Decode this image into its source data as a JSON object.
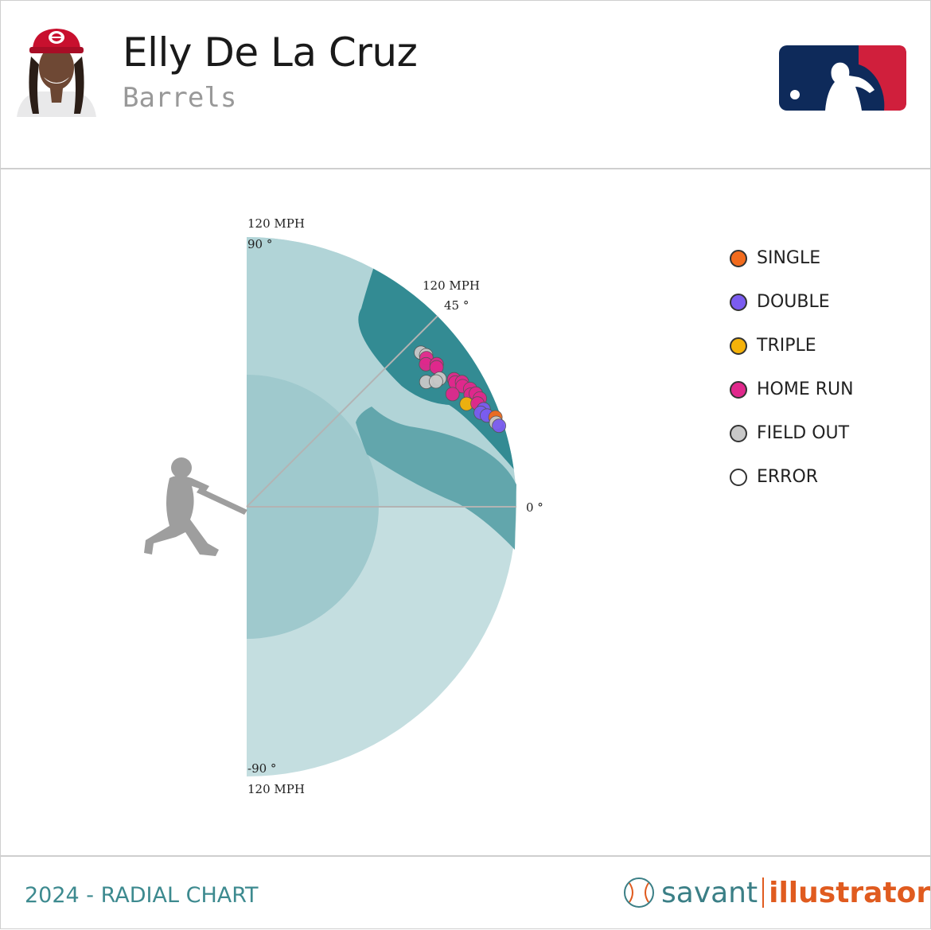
{
  "header": {
    "player_name": "Elly De La Cruz",
    "subtitle": "Barrels"
  },
  "footer": {
    "left_text": "2024 - RADIAL CHART",
    "brand_left": "savant",
    "brand_right": "illustrator"
  },
  "colors": {
    "single": "#f26b1d",
    "double": "#7b5cf0",
    "triple": "#f5b20a",
    "home_run": "#e0288c",
    "field_out": "#c8c8c8",
    "error": "#ffffff",
    "outer_zone": "#c4dee0",
    "upper_zone": "#b1d4d7",
    "inner_zone": "#9fc9cd",
    "sweet_zone": "#62a6ac",
    "barrel_zone": "#338b93"
  },
  "legend": [
    {
      "label": "SINGLE",
      "color_key": "single"
    },
    {
      "label": "DOUBLE",
      "color_key": "double"
    },
    {
      "label": "TRIPLE",
      "color_key": "triple"
    },
    {
      "label": "HOME RUN",
      "color_key": "home_run"
    },
    {
      "label": "FIELD OUT",
      "color_key": "field_out"
    },
    {
      "label": "ERROR",
      "color_key": "error"
    }
  ],
  "chart_data": {
    "type": "scatter",
    "coordinate_system": "polar",
    "x_quantity": "launch angle (degrees)",
    "y_quantity": "exit velocity (mph)",
    "angle_range": [
      -90,
      90
    ],
    "velocity_max": 120,
    "grid": true,
    "legend_position": "right",
    "axis_labels": [
      {
        "speed": "120 MPH",
        "angle": "90 °"
      },
      {
        "speed": "120 MPH",
        "angle": "45 °"
      },
      {
        "speed": "",
        "angle": "0 °"
      },
      {
        "speed": "120 MPH",
        "angle": "-90 °"
      }
    ],
    "points": [
      {
        "angle": 41.5,
        "speed": 103.5,
        "result": "field_out"
      },
      {
        "angle": 40.2,
        "speed": 104.5,
        "result": "field_out"
      },
      {
        "angle": 39.6,
        "speed": 103.8,
        "result": "home_run"
      },
      {
        "angle": 38.5,
        "speed": 101.9,
        "result": "home_run"
      },
      {
        "angle": 36.9,
        "speed": 105.7,
        "result": "home_run"
      },
      {
        "angle": 36.3,
        "speed": 104.8,
        "result": "home_run"
      },
      {
        "angle": 34.8,
        "speed": 97.3,
        "result": "field_out"
      },
      {
        "angle": 33.6,
        "speed": 103.0,
        "result": "field_out"
      },
      {
        "angle": 33.5,
        "speed": 101.0,
        "result": "field_out"
      },
      {
        "angle": 31.6,
        "speed": 108.3,
        "result": "home_run"
      },
      {
        "angle": 30.8,
        "speed": 108.0,
        "result": "home_run"
      },
      {
        "angle": 30.1,
        "speed": 110.7,
        "result": "home_run"
      },
      {
        "angle": 29.2,
        "speed": 110.0,
        "result": "home_run"
      },
      {
        "angle": 28.7,
        "speed": 104.4,
        "result": "home_run"
      },
      {
        "angle": 27.8,
        "speed": 112.4,
        "result": "home_run"
      },
      {
        "angle": 26.6,
        "speed": 111.4,
        "result": "home_run"
      },
      {
        "angle": 26.3,
        "speed": 113.7,
        "result": "home_run"
      },
      {
        "angle": 25.1,
        "speed": 108.0,
        "result": "triple"
      },
      {
        "angle": 24.9,
        "speed": 114.4,
        "result": "home_run"
      },
      {
        "angle": 24.1,
        "speed": 112.5,
        "result": "home_run"
      },
      {
        "angle": 22.4,
        "speed": 114.0,
        "result": "double"
      },
      {
        "angle": 21.9,
        "speed": 112.2,
        "result": "double"
      },
      {
        "angle": 20.8,
        "speed": 114.3,
        "result": "double"
      },
      {
        "angle": 19.8,
        "speed": 117.6,
        "result": "single"
      },
      {
        "angle": 18.6,
        "speed": 117.1,
        "result": "field_out"
      },
      {
        "angle": 17.8,
        "speed": 117.9,
        "result": "double"
      }
    ]
  }
}
